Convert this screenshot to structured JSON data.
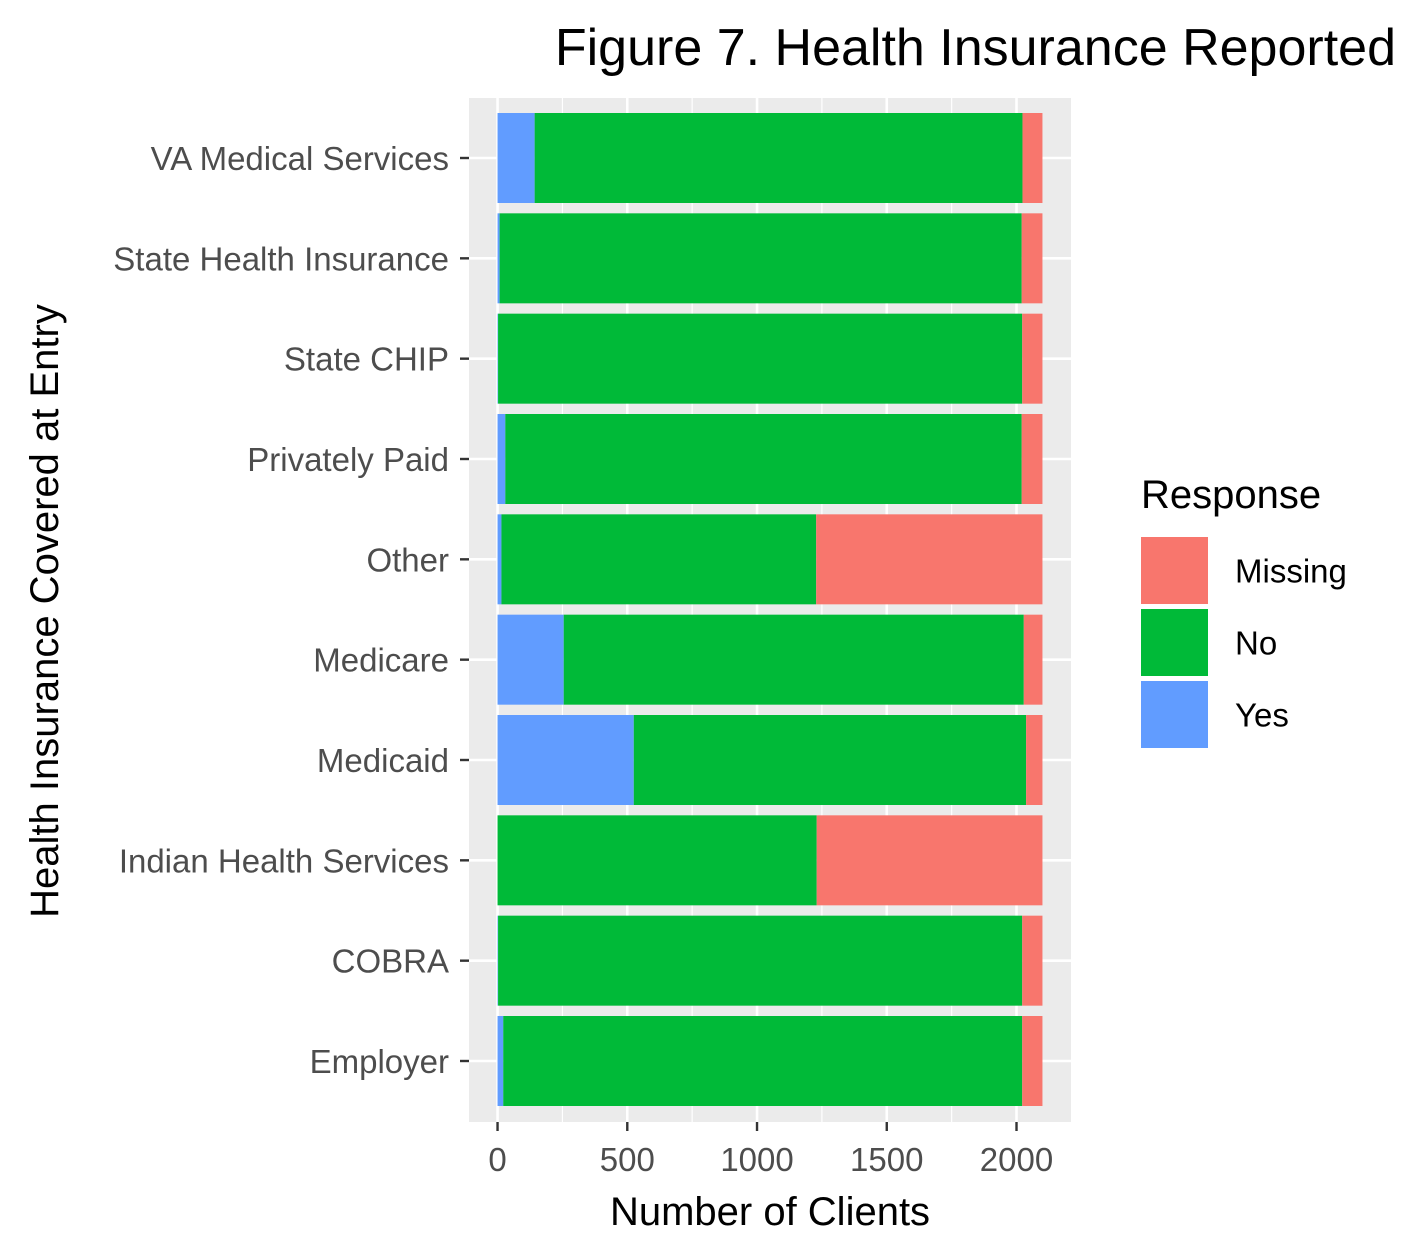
{
  "chart_data": {
    "type": "bar",
    "orientation": "horizontal",
    "stacked": true,
    "title": "Figure 7. Health Insurance Reported",
    "xlabel": "Number of Clients",
    "ylabel": "Health Insurance Covered at Entry",
    "xlim": [
      -110,
      2210
    ],
    "xticks": [
      0,
      500,
      1000,
      1500,
      2000
    ],
    "xtick_labels": [
      "0",
      "500",
      "1000",
      "1500",
      "2000"
    ],
    "categories": [
      "VA Medical Services",
      "State Health Insurance",
      "State CHIP",
      "Privately Paid",
      "Other",
      "Medicare",
      "Medicaid",
      "Indian Health Services",
      "COBRA",
      "Employer"
    ],
    "series": [
      {
        "name": "Yes",
        "color": "#619CFF",
        "values": [
          143,
          8,
          2,
          30,
          15,
          255,
          525,
          0,
          2,
          22
        ]
      },
      {
        "name": "No",
        "color": "#00BA38",
        "values": [
          1880,
          2012,
          2020,
          1990,
          1213,
          1773,
          1512,
          1230,
          2020,
          2000
        ]
      },
      {
        "name": "Missing",
        "color": "#F8766D",
        "values": [
          77,
          80,
          78,
          80,
          872,
          72,
          63,
          870,
          78,
          78
        ]
      }
    ],
    "legend": {
      "title": "Response",
      "position": "right",
      "entries": [
        "Missing",
        "No",
        "Yes"
      ]
    },
    "grid": true,
    "panel_background": "#EBEBEB",
    "grid_color": "#FFFFFF"
  }
}
